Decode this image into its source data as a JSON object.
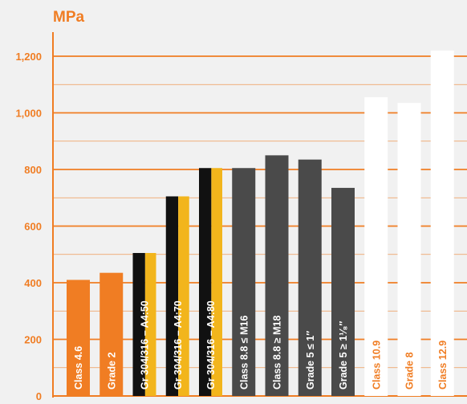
{
  "chart_data": {
    "type": "bar",
    "unit_label": "MPa",
    "ylim": [
      0,
      1250
    ],
    "yticks": [
      0,
      200,
      400,
      600,
      800,
      1000,
      1200
    ],
    "ytick_labels": [
      "0",
      "200",
      "400",
      "600",
      "800",
      "1,000",
      "1,200"
    ],
    "grid": true,
    "categories": [
      "Class 4.6",
      "Grade 2",
      "Gr 304/316 – A4:50",
      "Gr 304/316 – A4:70",
      "Gr 304/316 – A4:80",
      "Class 8.8 ≤ M16",
      "Class 8.8 ≥ M18",
      "Grade 5 ≤ 1″",
      "Grade 5 ≥ 1¹⁄₈″",
      "Class 10.9",
      "Grade 8",
      "Class 12.9"
    ],
    "values": [
      410,
      435,
      505,
      705,
      805,
      805,
      850,
      835,
      735,
      1055,
      1035,
      1220
    ],
    "bar_styles": [
      "orange",
      "orange",
      "stainless",
      "stainless",
      "stainless",
      "dark",
      "dark",
      "dark",
      "dark",
      "white",
      "white",
      "white"
    ]
  },
  "colors": {
    "background": "#f1f1f1",
    "accent": "#f07d23",
    "dark": "#4a4a4a",
    "white": "#ffffff",
    "black": "#111111",
    "yellow": "#f2b51c"
  }
}
